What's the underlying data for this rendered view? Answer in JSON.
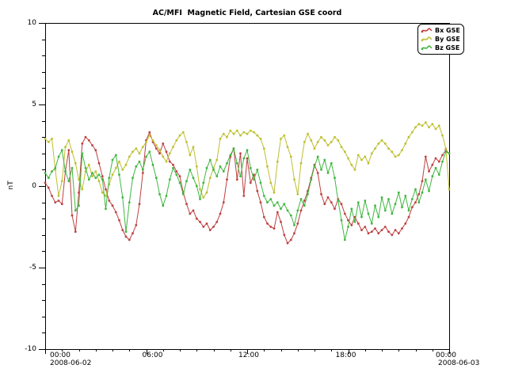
{
  "window": {
    "background": "#ffffff"
  },
  "chart_data": {
    "type": "line",
    "title": "AC/MFI  Magnetic Field, Cartesian GSE coord",
    "ylabel": "nT",
    "ylim": [
      -10,
      10
    ],
    "y_major_tick_step": 5,
    "y_minor_tick_step": 1,
    "y_tick_values": [
      10,
      5,
      0,
      -5,
      -10
    ],
    "y_tick_labels": [
      "10",
      "5",
      "0",
      "-5",
      "-10"
    ],
    "x_hours_range": [
      0,
      24
    ],
    "x_major_tick_step_hours": 6,
    "x_minor_tick_step_hours": 1,
    "x_tick_values_hours": [
      0,
      6,
      12,
      18,
      24
    ],
    "x_tick_labels": [
      "00:00",
      "06:00",
      "12:00",
      "18:00",
      "00:00"
    ],
    "x_start_date": "2008-06-02",
    "x_end_date": "2008-06-03",
    "grid": false,
    "legend_position": "top-right",
    "sample_start_hour": 0,
    "sample_step_hours": 0.2,
    "series": [
      {
        "name": "Bx GSE",
        "color": "#bf4040",
        "values": [
          0.2,
          -0.1,
          -0.6,
          -1.0,
          -0.9,
          -1.1,
          0.9,
          2.2,
          -1.8,
          -2.8,
          -0.4,
          2.6,
          3.0,
          2.8,
          2.5,
          2.2,
          1.4,
          0.6,
          -0.2,
          -0.9,
          -1.2,
          -1.6,
          -2.1,
          -2.7,
          -3.1,
          -3.3,
          -2.9,
          -2.4,
          -1.1,
          0.8,
          2.8,
          3.3,
          2.7,
          2.3,
          2.0,
          2.6,
          2.1,
          1.5,
          1.3,
          0.9,
          0.6,
          -0.4,
          -1.1,
          -1.7,
          -1.5,
          -2.0,
          -2.2,
          -2.5,
          -2.3,
          -2.7,
          -2.5,
          -2.2,
          -1.7,
          -1.0,
          0.4,
          1.8,
          2.3,
          0.4,
          2.0,
          -0.6,
          1.7,
          0.2,
          0.7,
          -0.3,
          -1.0,
          -1.9,
          -2.3,
          -2.5,
          -2.6,
          -1.6,
          -2.2,
          -3.0,
          -3.5,
          -3.3,
          -2.9,
          -2.3,
          -1.5,
          -0.9,
          -0.3,
          0.5,
          1.3,
          0.8,
          -0.5,
          -1.1,
          -0.7,
          -1.0,
          -1.4,
          -0.8,
          -1.1,
          -1.7,
          -2.1,
          -2.4,
          -1.9,
          -2.3,
          -2.7,
          -2.5,
          -2.9,
          -2.8,
          -2.6,
          -2.9,
          -2.7,
          -2.5,
          -2.8,
          -3.0,
          -2.7,
          -2.9,
          -2.6,
          -2.3,
          -1.9,
          -1.3,
          -1.0,
          -0.5,
          0.3,
          1.8,
          0.9,
          1.3,
          1.7,
          1.5,
          1.9,
          2.2,
          2.0
        ]
      },
      {
        "name": "By GSE",
        "color": "#bfbf30",
        "values": [
          2.9,
          2.7,
          2.9,
          1.0,
          -0.6,
          0.3,
          2.4,
          2.8,
          2.1,
          1.4,
          0.4,
          -0.2,
          0.9,
          1.3,
          0.6,
          0.9,
          0.3,
          -0.4,
          -0.6,
          0.1,
          0.7,
          1.1,
          1.5,
          1.0,
          1.3,
          1.8,
          2.1,
          2.3,
          2.0,
          2.4,
          2.7,
          3.1,
          2.8,
          2.5,
          2.2,
          1.8,
          1.5,
          2.0,
          2.4,
          2.8,
          3.1,
          3.3,
          2.7,
          1.9,
          2.4,
          1.2,
          -0.2,
          -0.7,
          -0.4,
          0.5,
          1.1,
          1.6,
          2.9,
          3.2,
          3.0,
          3.4,
          3.2,
          3.4,
          3.1,
          3.3,
          3.2,
          3.4,
          3.3,
          3.1,
          2.9,
          2.3,
          1.2,
          0.2,
          -0.4,
          1.5,
          2.9,
          3.1,
          2.4,
          1.8,
          0.4,
          -0.5,
          1.4,
          2.7,
          3.2,
          2.8,
          2.3,
          2.7,
          3.0,
          2.8,
          2.5,
          2.7,
          3.0,
          2.8,
          2.4,
          2.1,
          1.7,
          1.3,
          1.0,
          1.9,
          1.6,
          1.8,
          1.4,
          2.0,
          2.3,
          2.6,
          2.8,
          2.6,
          2.3,
          2.1,
          1.8,
          1.9,
          2.2,
          2.6,
          3.0,
          3.3,
          3.6,
          3.8,
          3.7,
          3.9,
          3.6,
          3.8,
          3.5,
          3.7,
          3.1,
          2.3,
          -0.2
        ]
      },
      {
        "name": "Bz GSE",
        "color": "#3fb73f",
        "values": [
          0.8,
          0.5,
          0.9,
          1.1,
          1.8,
          2.2,
          0.9,
          0.3,
          1.1,
          -1.5,
          -1.2,
          2.0,
          1.1,
          0.4,
          0.8,
          0.5,
          0.7,
          0.4,
          -1.4,
          0.5,
          1.6,
          1.9,
          0.7,
          -0.7,
          -2.8,
          -1.0,
          0.5,
          1.2,
          1.5,
          1.0,
          1.8,
          2.1,
          1.3,
          0.5,
          -0.5,
          -1.2,
          -0.6,
          0.4,
          1.1,
          0.7,
          0.2,
          -0.5,
          0.3,
          1.0,
          0.5,
          0.0,
          -0.8,
          0.2,
          1.1,
          1.6,
          1.0,
          0.6,
          1.2,
          0.9,
          1.4,
          1.9,
          2.3,
          1.4,
          0.6,
          1.7,
          2.2,
          1.1,
          0.4,
          1.0,
          0.2,
          -0.6,
          -1.0,
          -0.8,
          -1.2,
          -1.0,
          -1.4,
          -1.1,
          -1.5,
          -1.8,
          -2.4,
          -1.5,
          -0.8,
          -1.2,
          -0.5,
          0.4,
          1.2,
          1.8,
          1.0,
          1.6,
          0.8,
          1.4,
          0.5,
          -0.9,
          -2.1,
          -3.3,
          -2.5,
          -1.4,
          -2.2,
          -1.0,
          -1.9,
          -0.9,
          -1.7,
          -2.3,
          -1.2,
          -1.9,
          -0.7,
          -1.5,
          -0.8,
          -1.7,
          -1.1,
          -0.4,
          -1.3,
          -0.6,
          -1.5,
          -0.8,
          -0.2,
          -1.0,
          -0.4,
          0.4,
          -0.3,
          0.6,
          1.1,
          0.7,
          1.5,
          2.1,
          2.0
        ]
      }
    ]
  }
}
